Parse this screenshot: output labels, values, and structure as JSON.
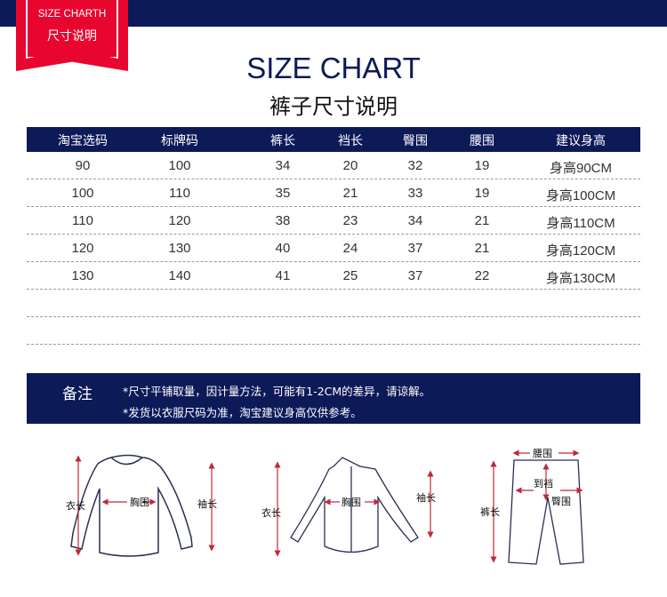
{
  "badge": {
    "line1": "SIZE CHARTH",
    "line2": "尺寸说明"
  },
  "title": "SIZE CHART",
  "subtitle": "裤子尺寸说明",
  "table": {
    "headers": [
      "淘宝选码",
      "标牌码",
      "裤长",
      "裆长",
      "臀围",
      "腰围",
      "建议身高"
    ],
    "rows": [
      [
        "90",
        "100",
        "34",
        "20",
        "32",
        "19",
        "身高90CM"
      ],
      [
        "100",
        "110",
        "35",
        "21",
        "33",
        "19",
        "身高100CM"
      ],
      [
        "110",
        "120",
        "38",
        "23",
        "34",
        "21",
        "身高110CM"
      ],
      [
        "120",
        "130",
        "40",
        "24",
        "37",
        "21",
        "身高120CM"
      ],
      [
        "130",
        "140",
        "41",
        "25",
        "37",
        "22",
        "身高130CM"
      ]
    ]
  },
  "note": {
    "label": "备注",
    "lines": [
      "*尺寸平铺取量，因计量方法，可能有1-2CM的差异，请谅解。",
      "*发货以衣服尺码为准，淘宝建议身高仅供参考。"
    ]
  },
  "diagrams": {
    "sweater": {
      "length": "衣长",
      "chest": "胸围",
      "sleeve": "袖长"
    },
    "shirt": {
      "length": "衣长",
      "chest": "胸围",
      "sleeve": "袖长"
    },
    "pants": {
      "waist": "腰围",
      "crotch": "到裆",
      "hip": "臀围",
      "length": "裤长"
    }
  },
  "colors": {
    "navy": "#0c1a58",
    "red": "#e8062f",
    "arrow": "#c0283a"
  }
}
